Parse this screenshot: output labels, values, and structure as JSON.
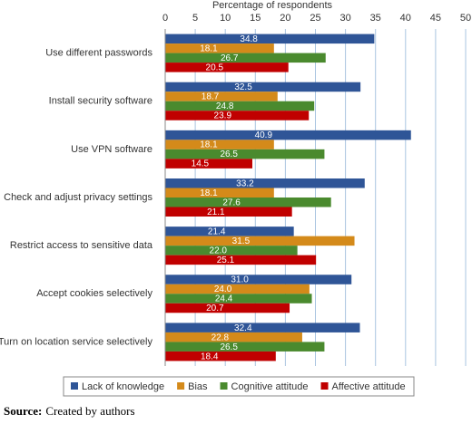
{
  "chart_data": {
    "type": "hbar",
    "x_label": "Percentage of respondents",
    "categories": [
      "Use different passwords",
      "Install security software",
      "Use VPN software",
      "Check and adjust privacy settings",
      "Restrict access to sensitive data",
      "Accept cookies selectively",
      "Turn on location service selectively"
    ],
    "series": [
      {
        "name": "Lack of knowledge",
        "color": "#2f5597",
        "values": [
          34.8,
          32.5,
          40.9,
          33.2,
          21.4,
          31.0,
          32.4
        ],
        "value_labels": [
          "34.8",
          "32.5",
          "40.9",
          "33.2",
          "21.4",
          "31.0",
          "32.4"
        ]
      },
      {
        "name": "Bias",
        "color": "#d48a1a",
        "values": [
          18.1,
          18.7,
          18.1,
          18.1,
          31.5,
          24.0,
          22.8
        ],
        "value_labels": [
          "18.1",
          "18.7",
          "18.1",
          "18.1",
          "31.5",
          "24.0",
          "22.8"
        ]
      },
      {
        "name": "Cognitive attitude",
        "color": "#4a8a2e",
        "values": [
          26.7,
          24.8,
          26.5,
          27.6,
          22.0,
          24.4,
          26.5
        ],
        "value_labels": [
          "26.7",
          "24.8",
          "26.5",
          "27.6",
          "22.0",
          "24.4",
          "26.5"
        ]
      },
      {
        "name": "Affective attitude",
        "color": "#c00000",
        "values": [
          20.5,
          23.9,
          14.5,
          21.1,
          25.1,
          20.7,
          18.4
        ],
        "value_labels": [
          "20.5",
          "23.9",
          "14.5",
          "21.1",
          "25.1",
          "20.7",
          "18.4"
        ]
      }
    ],
    "xlim": [
      0,
      50
    ],
    "xticks": [
      0,
      5,
      10,
      15,
      20,
      25,
      30,
      35,
      40,
      45,
      50
    ],
    "grid": true,
    "legend": "bottom",
    "source_label": "Source:",
    "source_text": "Created by authors"
  }
}
